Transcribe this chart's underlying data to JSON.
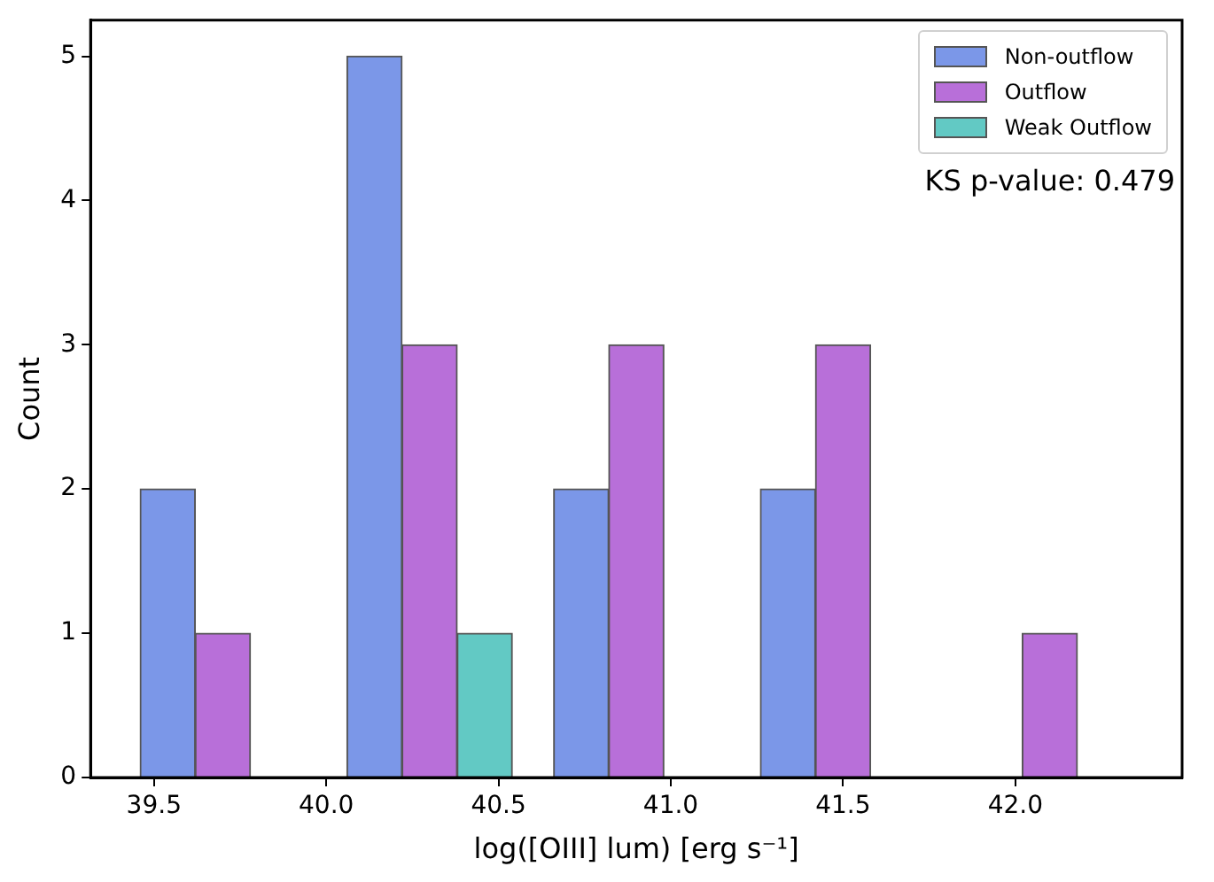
{
  "chart_data": {
    "type": "histogram",
    "xlabel": "log([OIII] lum) [erg s⁻¹]",
    "ylabel": "Count",
    "bins": [
      39.4,
      40.0,
      40.6,
      41.2,
      41.8,
      42.4
    ],
    "series": [
      {
        "name": "Non-outflow",
        "color": "#7b97e8",
        "values": [
          2,
          5,
          2,
          2,
          0
        ]
      },
      {
        "name": "Outflow",
        "color": "#b86fd9",
        "values": [
          1,
          3,
          3,
          3,
          1
        ]
      },
      {
        "name": "Weak Outflow",
        "color": "#62c9c4",
        "values": [
          0,
          1,
          0,
          0,
          0
        ]
      }
    ],
    "xlim": [
      39.316,
      42.484
    ],
    "xticks": [
      {
        "value": 39.5,
        "label": "39.5"
      },
      {
        "value": 40.0,
        "label": "40.0"
      },
      {
        "value": 40.5,
        "label": "40.5"
      },
      {
        "value": 41.0,
        "label": "41.0"
      },
      {
        "value": 41.5,
        "label": "41.5"
      },
      {
        "value": 42.0,
        "label": "42.0"
      }
    ],
    "ylim": [
      0,
      5.25
    ],
    "yticks": [
      0,
      1,
      2,
      3,
      4,
      5
    ],
    "grid": false,
    "legend": "top right",
    "annotations": [
      "KS p-value: 0.479"
    ]
  }
}
